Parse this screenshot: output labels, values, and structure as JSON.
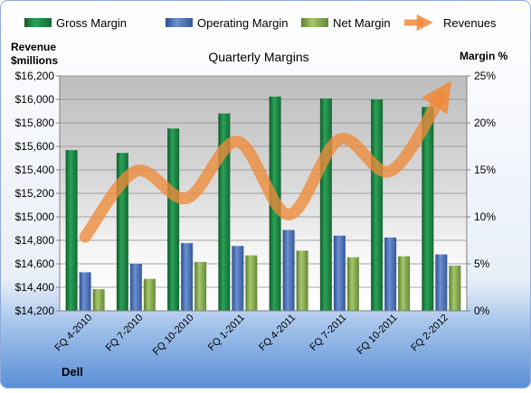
{
  "chart_data": {
    "type": "bar",
    "title": "Quarterly Margins",
    "left_axis_label_line1": "Revenue",
    "left_axis_label_line2": "$millions",
    "right_axis_label": "Margin %",
    "company": "Dell",
    "categories": [
      "FQ 4-2010",
      "FQ 7-2010",
      "FQ 10-2010",
      "FQ 1-2011",
      "FQ 4-2011",
      "FQ 7-2011",
      "FQ 10-2011",
      "FQ 2-2012"
    ],
    "left_axis": {
      "ylim": [
        14200,
        16200
      ],
      "ticks": [
        "$14,200",
        "$14,400",
        "$14,600",
        "$14,800",
        "$15,000",
        "$15,200",
        "$15,400",
        "$15,600",
        "$15,800",
        "$16,000",
        "$16,200"
      ]
    },
    "right_axis": {
      "ylim": [
        0,
        25
      ],
      "ticks": [
        "0%",
        "5%",
        "10%",
        "15%",
        "20%",
        "25%"
      ]
    },
    "series": [
      {
        "name": "Gross Margin",
        "kind": "bar",
        "axis": "right",
        "color": "#1f8a45",
        "values": [
          17.1,
          16.8,
          19.4,
          21.0,
          22.8,
          22.6,
          22.5,
          21.7
        ]
      },
      {
        "name": "Operating Margin",
        "kind": "bar",
        "axis": "right",
        "color": "#4a6fb5",
        "values": [
          4.1,
          5.0,
          7.2,
          6.9,
          8.6,
          8.0,
          7.8,
          6.0
        ]
      },
      {
        "name": "Net Margin",
        "kind": "bar",
        "axis": "right",
        "color": "#7fa84a",
        "values": [
          2.3,
          3.4,
          5.2,
          5.9,
          6.4,
          5.7,
          5.8,
          4.8
        ]
      },
      {
        "name": "Revenues",
        "kind": "line",
        "axis": "left",
        "color": "#ee8a3a",
        "values": [
          14830,
          15390,
          15160,
          15640,
          15020,
          15660,
          15390,
          16030
        ]
      }
    ],
    "legend": {
      "placement": "top"
    },
    "grid": true
  }
}
